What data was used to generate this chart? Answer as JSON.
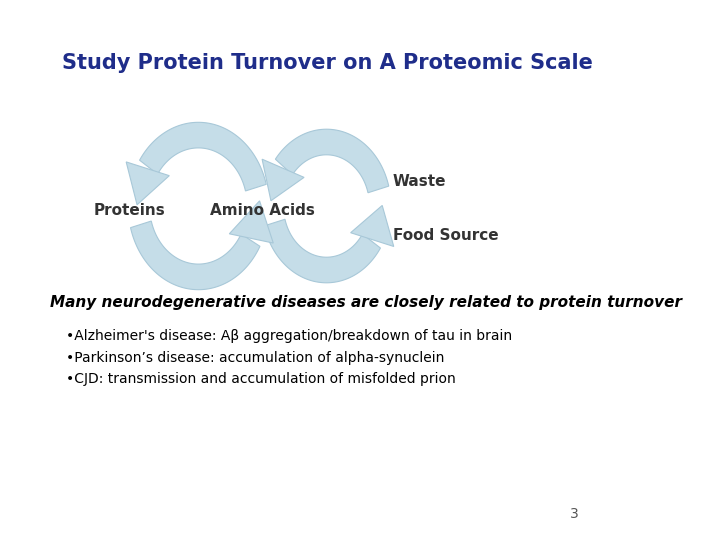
{
  "title": "Study Protein Turnover on A Proteomic Scale",
  "title_color": "#1F2D8A",
  "title_fontsize": 15,
  "label_proteins": "Proteins",
  "label_amino": "Amino Acids",
  "label_food": "Food Source",
  "label_waste": "Waste",
  "arrow_color": "#C5DDE8",
  "arrow_edge_color": "#A8C8D8",
  "bold_text": "Many neurodegenerative diseases are closely related to protein turnover",
  "bullets": [
    "•Alzheimer's disease: Aβ aggregation/breakdown of tau in brain",
    "•Parkinson’s disease: accumulation of alpha-synuclein",
    "•CJD: transmission and accumulation of misfolded prion"
  ],
  "page_number": "3",
  "bg_color": "#FFFFFF",
  "label_fontsize": 11,
  "label_color": "#333333",
  "bullet_fontsize": 10,
  "bold_fontsize": 11
}
